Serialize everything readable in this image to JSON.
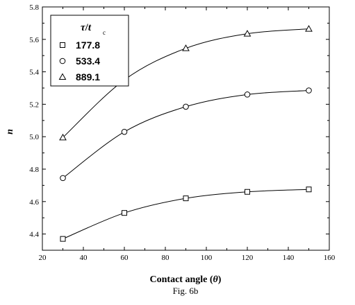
{
  "chart_data": {
    "type": "line",
    "x": [
      30,
      60,
      90,
      120,
      150
    ],
    "series": [
      {
        "name": "177.8",
        "marker": "square",
        "values": [
          4.37,
          4.53,
          4.62,
          4.66,
          4.675
        ]
      },
      {
        "name": "533.4",
        "marker": "circle",
        "values": [
          4.745,
          5.03,
          5.185,
          5.26,
          5.285
        ]
      },
      {
        "name": "889.1",
        "marker": "triangle",
        "values": [
          4.995,
          5.35,
          5.545,
          5.635,
          5.665
        ]
      }
    ],
    "xlabel_main": "Contact angle (",
    "xlabel_symbol": "θ",
    "xlabel_close": ")",
    "ylabel": "n",
    "xlim": [
      20,
      160
    ],
    "ylim": [
      4.3,
      5.8
    ],
    "xticks": [
      "20",
      "40",
      "60",
      "80",
      "100",
      "120",
      "140",
      "160"
    ],
    "yticks": [
      "4.4",
      "4.6",
      "4.8",
      "5.0",
      "5.2",
      "5.4",
      "5.6",
      "5.8"
    ],
    "legend_title_num": "τ",
    "legend_title_slash": "/",
    "legend_title_den": "t",
    "legend_title_sub": "c",
    "legend_position": "top-left",
    "grid": false,
    "caption": "Fig. 6b"
  }
}
